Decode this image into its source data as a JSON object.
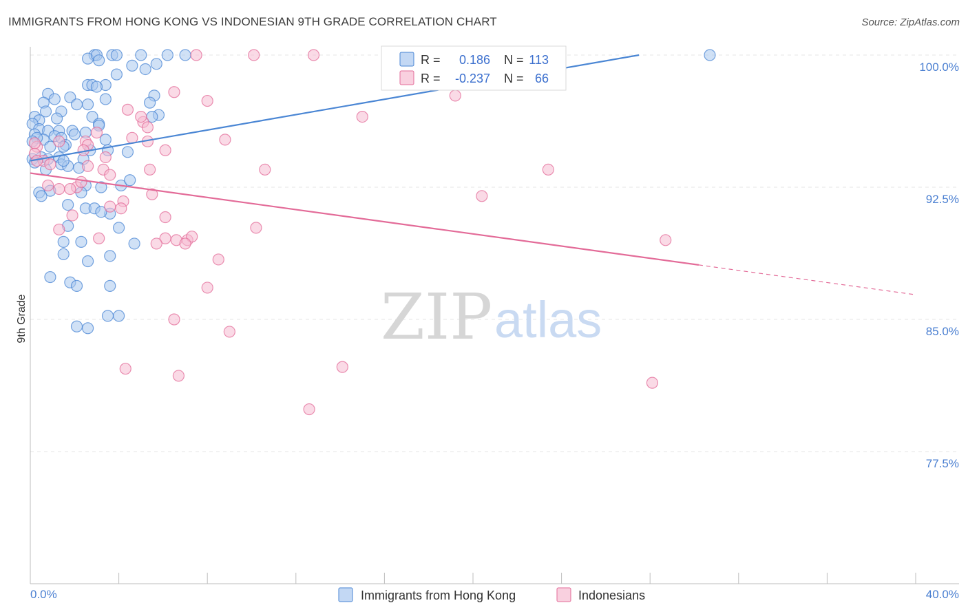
{
  "title": "IMMIGRANTS FROM HONG KONG VS INDONESIAN 9TH GRADE CORRELATION CHART",
  "source": "Source: ZipAtlas.com",
  "watermark": {
    "zip": "ZIP",
    "atlas": "atlas"
  },
  "chart_data": {
    "type": "scatter",
    "ylabel": "9th Grade",
    "xlim": [
      0,
      40
    ],
    "ylim": [
      70,
      100.8
    ],
    "x_tick_labels": {
      "left": "0.0%",
      "right": "40.0%"
    },
    "y_ticks": [
      {
        "value": 100.0,
        "label": "100.0%"
      },
      {
        "value": 92.5,
        "label": "92.5%"
      },
      {
        "value": 85.0,
        "label": "85.0%"
      },
      {
        "value": 77.5,
        "label": "77.5%"
      }
    ],
    "legend_stats": [
      {
        "r_key": "R =",
        "r_value": "0.186",
        "n_key": "N =",
        "n_value": "113"
      },
      {
        "r_key": "R =",
        "r_value": "-0.237",
        "n_key": "N =",
        "n_value": "66"
      }
    ],
    "series": [
      {
        "name": "Immigrants from Hong Kong",
        "color": "#4a86d4",
        "fill": "#a9c8ef",
        "trend": {
          "x0": 0,
          "y0": 94.0,
          "x1": 27.5,
          "y1": 100.0,
          "x_solid_end": 27.5
        },
        "points": [
          [
            2.9,
            100
          ],
          [
            2.6,
            99.8
          ],
          [
            3.0,
            100
          ],
          [
            3.1,
            99.7
          ],
          [
            3.7,
            100
          ],
          [
            3.9,
            100
          ],
          [
            5.0,
            100
          ],
          [
            6.2,
            100
          ],
          [
            7.0,
            100
          ],
          [
            30.7,
            100
          ],
          [
            4.6,
            99.4
          ],
          [
            5.2,
            99.2
          ],
          [
            5.7,
            99.5
          ],
          [
            3.9,
            98.9
          ],
          [
            2.6,
            98.3
          ],
          [
            2.8,
            98.3
          ],
          [
            3.4,
            98.3
          ],
          [
            3.0,
            98.2
          ],
          [
            0.8,
            97.8
          ],
          [
            1.1,
            97.5
          ],
          [
            1.8,
            97.6
          ],
          [
            0.6,
            97.3
          ],
          [
            2.1,
            97.2
          ],
          [
            2.6,
            97.2
          ],
          [
            3.4,
            97.5
          ],
          [
            5.6,
            97.7
          ],
          [
            5.4,
            97.3
          ],
          [
            0.7,
            96.8
          ],
          [
            1.4,
            96.8
          ],
          [
            0.2,
            96.5
          ],
          [
            1.2,
            96.4
          ],
          [
            0.4,
            96.3
          ],
          [
            2.8,
            96.5
          ],
          [
            5.8,
            96.6
          ],
          [
            5.5,
            96.5
          ],
          [
            3.1,
            96.1
          ],
          [
            3.1,
            96.0
          ],
          [
            0.1,
            96.1
          ],
          [
            0.4,
            95.8
          ],
          [
            1.3,
            95.7
          ],
          [
            1.9,
            95.7
          ],
          [
            2.5,
            95.6
          ],
          [
            0.8,
            95.7
          ],
          [
            0.2,
            95.5
          ],
          [
            2.0,
            95.5
          ],
          [
            1.1,
            95.4
          ],
          [
            0.6,
            95.2
          ],
          [
            1.4,
            95.3
          ],
          [
            3.4,
            95.2
          ],
          [
            0.3,
            95.3
          ],
          [
            1.6,
            94.9
          ],
          [
            0.1,
            95.1
          ],
          [
            0.9,
            94.8
          ],
          [
            1.5,
            94.8
          ],
          [
            2.7,
            94.6
          ],
          [
            3.5,
            94.6
          ],
          [
            4.4,
            94.5
          ],
          [
            0.5,
            94.2
          ],
          [
            0.1,
            94.1
          ],
          [
            0.8,
            94.1
          ],
          [
            1.3,
            94.2
          ],
          [
            2.4,
            94.1
          ],
          [
            0.2,
            93.9
          ],
          [
            1.4,
            93.8
          ],
          [
            1.7,
            93.7
          ],
          [
            1.5,
            94.0
          ],
          [
            2.2,
            93.6
          ],
          [
            0.7,
            93.5
          ],
          [
            2.5,
            92.6
          ],
          [
            3.2,
            92.5
          ],
          [
            4.1,
            92.6
          ],
          [
            4.5,
            92.9
          ],
          [
            0.4,
            92.2
          ],
          [
            0.9,
            92.3
          ],
          [
            2.3,
            92.2
          ],
          [
            0.5,
            92.0
          ],
          [
            1.7,
            91.5
          ],
          [
            2.5,
            91.3
          ],
          [
            2.9,
            91.3
          ],
          [
            3.6,
            91.0
          ],
          [
            3.2,
            91.1
          ],
          [
            4.0,
            90.2
          ],
          [
            1.7,
            90.3
          ],
          [
            1.5,
            89.4
          ],
          [
            2.3,
            89.4
          ],
          [
            4.7,
            89.3
          ],
          [
            1.5,
            88.7
          ],
          [
            2.6,
            88.3
          ],
          [
            3.6,
            88.6
          ],
          [
            0.9,
            87.4
          ],
          [
            1.8,
            87.1
          ],
          [
            2.1,
            86.9
          ],
          [
            3.6,
            86.9
          ],
          [
            3.5,
            85.2
          ],
          [
            4.0,
            85.2
          ],
          [
            2.1,
            84.6
          ],
          [
            2.6,
            84.5
          ]
        ]
      },
      {
        "name": "Indonesians",
        "color": "#e36b98",
        "fill": "#f6bcd1",
        "trend": {
          "x0": 0,
          "y0": 93.3,
          "x1": 40,
          "y1": 86.4,
          "x_solid_end": 30.2
        },
        "points": [
          [
            7.5,
            100
          ],
          [
            10.1,
            100
          ],
          [
            12.8,
            100
          ],
          [
            6.5,
            97.9
          ],
          [
            19.2,
            97.7
          ],
          [
            8.0,
            97.4
          ],
          [
            15.0,
            96.5
          ],
          [
            4.4,
            96.9
          ],
          [
            5.1,
            96.2
          ],
          [
            5.0,
            96.5
          ],
          [
            5.3,
            95.9
          ],
          [
            3.0,
            95.6
          ],
          [
            4.6,
            95.3
          ],
          [
            8.8,
            95.2
          ],
          [
            5.3,
            95.1
          ],
          [
            2.5,
            95.1
          ],
          [
            1.3,
            95.1
          ],
          [
            2.6,
            94.9
          ],
          [
            2.4,
            94.6
          ],
          [
            0.3,
            94.8
          ],
          [
            0.2,
            95.0
          ],
          [
            0.2,
            94.4
          ],
          [
            6.1,
            94.6
          ],
          [
            3.4,
            94.2
          ],
          [
            0.6,
            94.0
          ],
          [
            0.9,
            93.8
          ],
          [
            2.6,
            93.7
          ],
          [
            3.3,
            93.5
          ],
          [
            3.6,
            93.2
          ],
          [
            5.4,
            93.5
          ],
          [
            10.6,
            93.5
          ],
          [
            23.4,
            93.5
          ],
          [
            0.3,
            94.0
          ],
          [
            2.1,
            92.5
          ],
          [
            0.8,
            92.6
          ],
          [
            1.3,
            92.4
          ],
          [
            2.3,
            92.8
          ],
          [
            1.8,
            92.4
          ],
          [
            5.5,
            92.1
          ],
          [
            20.4,
            92.0
          ],
          [
            4.2,
            91.7
          ],
          [
            3.6,
            91.4
          ],
          [
            4.1,
            91.3
          ],
          [
            1.9,
            90.9
          ],
          [
            6.1,
            90.8
          ],
          [
            1.3,
            90.1
          ],
          [
            10.2,
            90.2
          ],
          [
            6.1,
            89.6
          ],
          [
            6.6,
            89.5
          ],
          [
            7.1,
            89.5
          ],
          [
            7.3,
            89.7
          ],
          [
            5.7,
            89.3
          ],
          [
            7.0,
            89.3
          ],
          [
            3.1,
            89.6
          ],
          [
            28.7,
            89.5
          ],
          [
            8.5,
            88.4
          ],
          [
            8.0,
            86.8
          ],
          [
            6.5,
            85.0
          ],
          [
            9.0,
            84.3
          ],
          [
            4.3,
            82.2
          ],
          [
            6.7,
            81.8
          ],
          [
            14.1,
            82.3
          ],
          [
            28.1,
            81.4
          ],
          [
            12.6,
            79.9
          ]
        ]
      }
    ]
  }
}
